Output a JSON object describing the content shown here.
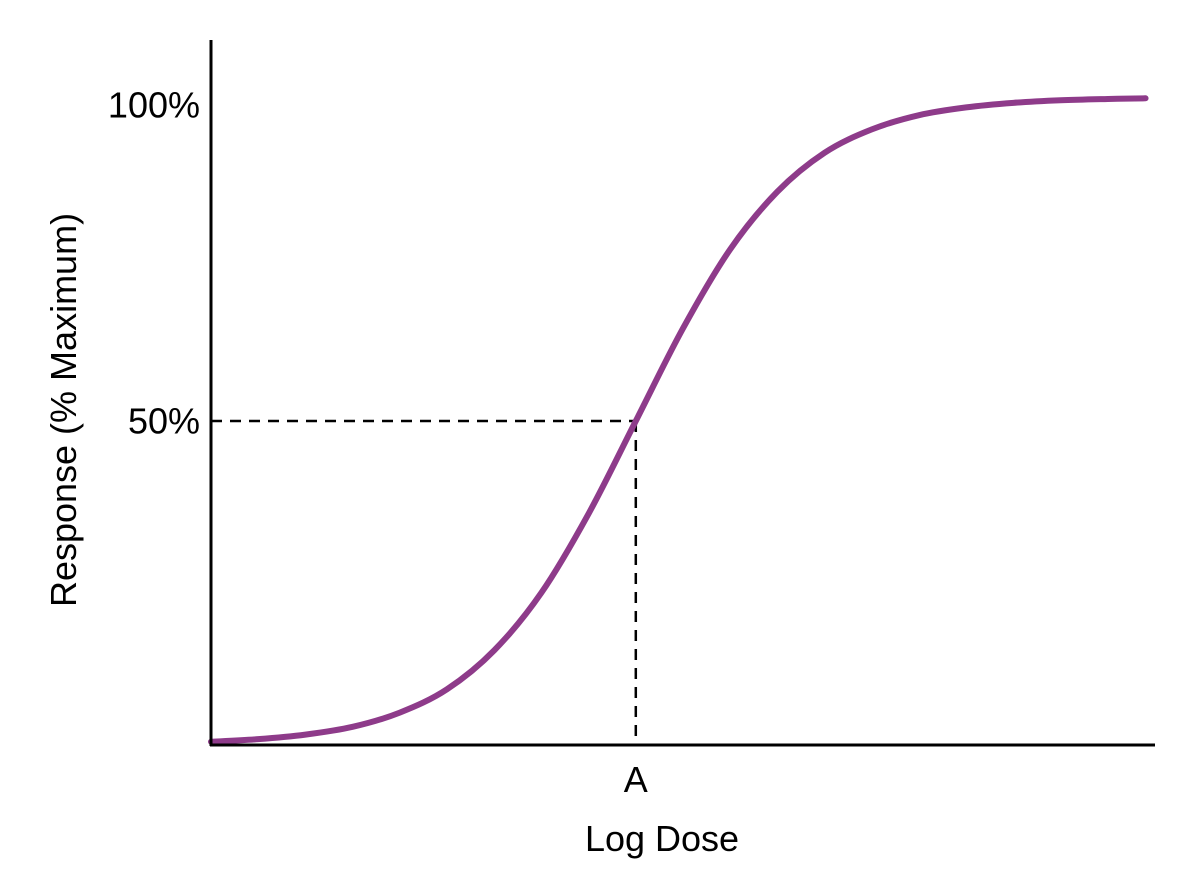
{
  "chart_data": {
    "type": "line",
    "title": "",
    "xlabel": "Log Dose",
    "ylabel": "Response (% Maximum)",
    "x_ticks": [
      {
        "value": 4.5,
        "label": "A"
      }
    ],
    "y_ticks": [
      {
        "value": 50,
        "label": "50%"
      },
      {
        "value": 100,
        "label": "100%"
      }
    ],
    "xlim": [
      0,
      10
    ],
    "ylim": [
      0,
      109
    ],
    "grid": false,
    "reference_lines": {
      "x": 4.5,
      "y": 50,
      "style": "dashed"
    },
    "colors": {
      "curve": "#8E3B8A",
      "axes": "#000000"
    },
    "series": [
      {
        "x": [
          0,
          0.5,
          1,
          1.5,
          2,
          2.5,
          3,
          3.5,
          4,
          4.5,
          5,
          5.5,
          6,
          6.5,
          7,
          7.5,
          8,
          8.5,
          9,
          9.5,
          9.9
        ],
        "y": [
          0.5,
          0.9,
          1.6,
          2.8,
          5.0,
          8.6,
          14.6,
          23.5,
          35.7,
          50,
          64.3,
          76.5,
          85.4,
          91.4,
          95.0,
          97.2,
          98.4,
          99.1,
          99.5,
          99.7,
          99.8
        ]
      }
    ]
  }
}
